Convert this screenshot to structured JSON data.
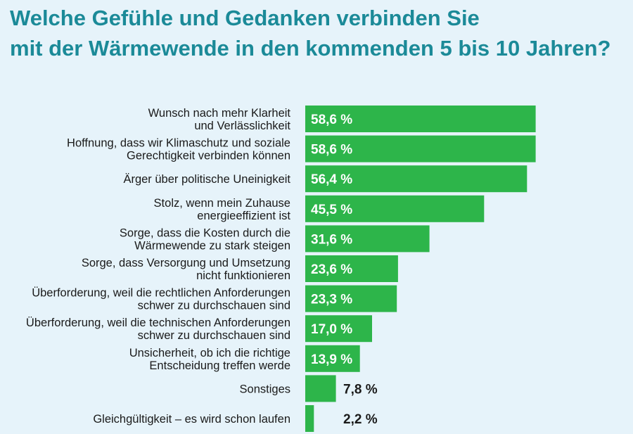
{
  "title": {
    "line1": "Welche Gefühle und Gedanken verbinden Sie",
    "line2": "mit der Wärmewende in den kommenden 5 bis 10 Jahren?"
  },
  "colors": {
    "bar": "#2db54a",
    "title": "#1b8a98",
    "background": "#e6f3fa"
  },
  "chart_data": {
    "type": "bar",
    "orientation": "horizontal",
    "title": "Welche Gefühle und Gedanken verbinden Sie mit der Wärmewende in den kommenden 5 bis 10 Jahren?",
    "categories": [
      [
        "Wunsch nach mehr Klarheit",
        "und Verlässlichkeit"
      ],
      [
        "Hoffnung, dass wir Klimaschutz und soziale",
        "Gerechtigkeit verbinden können"
      ],
      [
        "Ärger über politische Uneinigkeit"
      ],
      [
        "Stolz, wenn mein Zuhause",
        "energieeffizient ist"
      ],
      [
        "Sorge, dass die Kosten durch die",
        "Wärmewende zu stark steigen"
      ],
      [
        "Sorge, dass Versorgung und Umsetzung",
        "nicht funktionieren"
      ],
      [
        "Überforderung, weil die rechtlichen Anforderungen",
        "schwer zu durchschauen sind"
      ],
      [
        "Überforderung, weil die technischen Anforderungen",
        "schwer zu durchschauen sind"
      ],
      [
        "Unsicherheit, ob ich die richtige",
        "Entscheidung treffen werde"
      ],
      [
        "Sonstiges"
      ],
      [
        "Gleichgültigkeit – es wird schon laufen"
      ]
    ],
    "values": [
      58.6,
      58.6,
      56.4,
      45.5,
      31.6,
      23.6,
      23.3,
      17.0,
      13.9,
      7.8,
      2.2
    ],
    "value_labels": [
      "58,6 %",
      "58,6 %",
      "56,4 %",
      "45,5 %",
      "31,6 %",
      "23,6 %",
      "23,3 %",
      "17,0 %",
      "13,9 %",
      "7,8 %",
      "2,2 %"
    ],
    "unit": "%",
    "grid": false,
    "legend": "none"
  }
}
